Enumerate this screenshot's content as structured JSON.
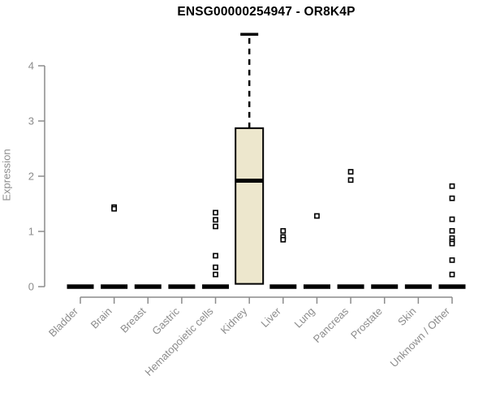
{
  "title": "ENSG00000254947 - OR8K4P",
  "chart_data": {
    "type": "boxplot",
    "title": "ENSG00000254947 - OR8K4P",
    "xlabel": "",
    "ylabel": "Expression",
    "ylim": [
      0,
      4.6
    ],
    "yticks": [
      0,
      1,
      2,
      3,
      4
    ],
    "grid": false,
    "legend": "none",
    "categories": [
      "Bladder",
      "Brain",
      "Breast",
      "Gastric",
      "Hematopoietic cells",
      "Kidney",
      "Liver",
      "Lung",
      "Pancreas",
      "Prostate",
      "Skin",
      "Unknown / Other"
    ],
    "boxes": [
      {
        "category": "Bladder",
        "q1": 0,
        "median": 0,
        "q3": 0,
        "whisker_low": 0,
        "whisker_high": 0,
        "outliers": []
      },
      {
        "category": "Brain",
        "q1": 0,
        "median": 0,
        "q3": 0,
        "whisker_low": 0,
        "whisker_high": 0,
        "outliers": [
          1.44,
          1.41
        ]
      },
      {
        "category": "Breast",
        "q1": 0,
        "median": 0,
        "q3": 0,
        "whisker_low": 0,
        "whisker_high": 0,
        "outliers": []
      },
      {
        "category": "Gastric",
        "q1": 0,
        "median": 0,
        "q3": 0,
        "whisker_low": 0,
        "whisker_high": 0,
        "outliers": []
      },
      {
        "category": "Hematopoietic cells",
        "q1": 0,
        "median": 0,
        "q3": 0,
        "whisker_low": 0,
        "whisker_high": 0,
        "outliers": [
          1.34,
          1.21,
          1.09,
          0.56,
          0.35,
          0.22
        ]
      },
      {
        "category": "Kidney",
        "q1": 0.05,
        "median": 1.92,
        "q3": 2.87,
        "whisker_low": 0.05,
        "whisker_high": 4.57,
        "outliers": []
      },
      {
        "category": "Liver",
        "q1": 0,
        "median": 0,
        "q3": 0,
        "whisker_low": 0,
        "whisker_high": 0,
        "outliers": [
          1.01,
          0.9,
          0.85
        ]
      },
      {
        "category": "Lung",
        "q1": 0,
        "median": 0,
        "q3": 0,
        "whisker_low": 0,
        "whisker_high": 0,
        "outliers": [
          1.28
        ]
      },
      {
        "category": "Pancreas",
        "q1": 0,
        "median": 0,
        "q3": 0,
        "whisker_low": 0,
        "whisker_high": 0,
        "outliers": [
          2.08,
          1.93
        ]
      },
      {
        "category": "Prostate",
        "q1": 0,
        "median": 0,
        "q3": 0,
        "whisker_low": 0,
        "whisker_high": 0,
        "outliers": []
      },
      {
        "category": "Skin",
        "q1": 0,
        "median": 0,
        "q3": 0,
        "whisker_low": 0,
        "whisker_high": 0,
        "outliers": []
      },
      {
        "category": "Unknown / Other",
        "q1": 0,
        "median": 0,
        "q3": 0,
        "whisker_low": 0,
        "whisker_high": 0,
        "outliers": [
          1.82,
          1.6,
          1.22,
          1.01,
          0.88,
          0.82,
          0.78,
          0.48,
          0.22
        ]
      }
    ],
    "colors": {
      "box_fill": "#EDE7CD",
      "box_border": "#000000",
      "median": "#000000",
      "whisker": "#000000",
      "outlier": "#000000",
      "axis": "#8C8C8C",
      "tick_text": "#8C8C8C",
      "title_text": "#000000",
      "background": "#FFFFFF"
    }
  }
}
